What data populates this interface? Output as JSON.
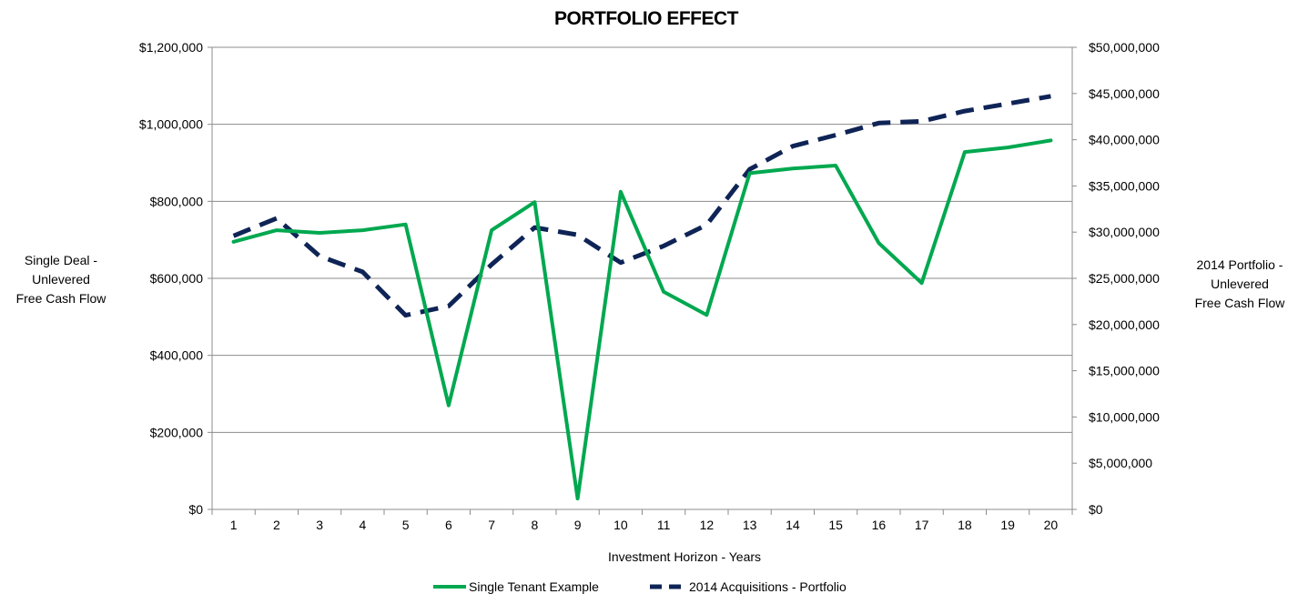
{
  "chart_data": {
    "type": "line",
    "title": "PORTFOLIO EFFECT",
    "xlabel": "Investment Horizon - Years",
    "ylabel_left": [
      "Single Deal -",
      "Unlevered",
      "Free Cash Flow"
    ],
    "ylabel_right": [
      "2014 Portfolio -",
      "Unlevered",
      "Free Cash Flow"
    ],
    "categories": [
      "1",
      "2",
      "3",
      "4",
      "5",
      "6",
      "7",
      "8",
      "9",
      "10",
      "11",
      "12",
      "13",
      "14",
      "15",
      "16",
      "17",
      "18",
      "19",
      "20"
    ],
    "ylim_left": [
      0,
      1200000
    ],
    "ylim_right": [
      0,
      50000000
    ],
    "left_ticks": [
      "$0",
      "$200,000",
      "$400,000",
      "$600,000",
      "$800,000",
      "$1,000,000",
      "$1,200,000"
    ],
    "right_ticks": [
      "$0",
      "$5,000,000",
      "$10,000,000",
      "$15,000,000",
      "$20,000,000",
      "$25,000,000",
      "$30,000,000",
      "$35,000,000",
      "$40,000,000",
      "$45,000,000",
      "$50,000,000"
    ],
    "grid": "horizontal",
    "legend_position": "bottom",
    "series": [
      {
        "name": "Single Tenant Example",
        "axis": "left",
        "style": "solid",
        "color": "#00A84F",
        "values": [
          695000,
          725000,
          718000,
          725000,
          740000,
          270000,
          725000,
          798000,
          28000,
          825000,
          565000,
          505000,
          873000,
          885000,
          893000,
          692000,
          588000,
          928000,
          940000,
          958000
        ]
      },
      {
        "name": "2014 Acquisitions - Portfolio",
        "axis": "right",
        "style": "dashed",
        "color": "#0F2456",
        "values": [
          29600000,
          31500000,
          27400000,
          25700000,
          21000000,
          22000000,
          26500000,
          30500000,
          29700000,
          26700000,
          28500000,
          30800000,
          36800000,
          39300000,
          40500000,
          41800000,
          42000000,
          43100000,
          43900000,
          44700000
        ]
      }
    ]
  }
}
